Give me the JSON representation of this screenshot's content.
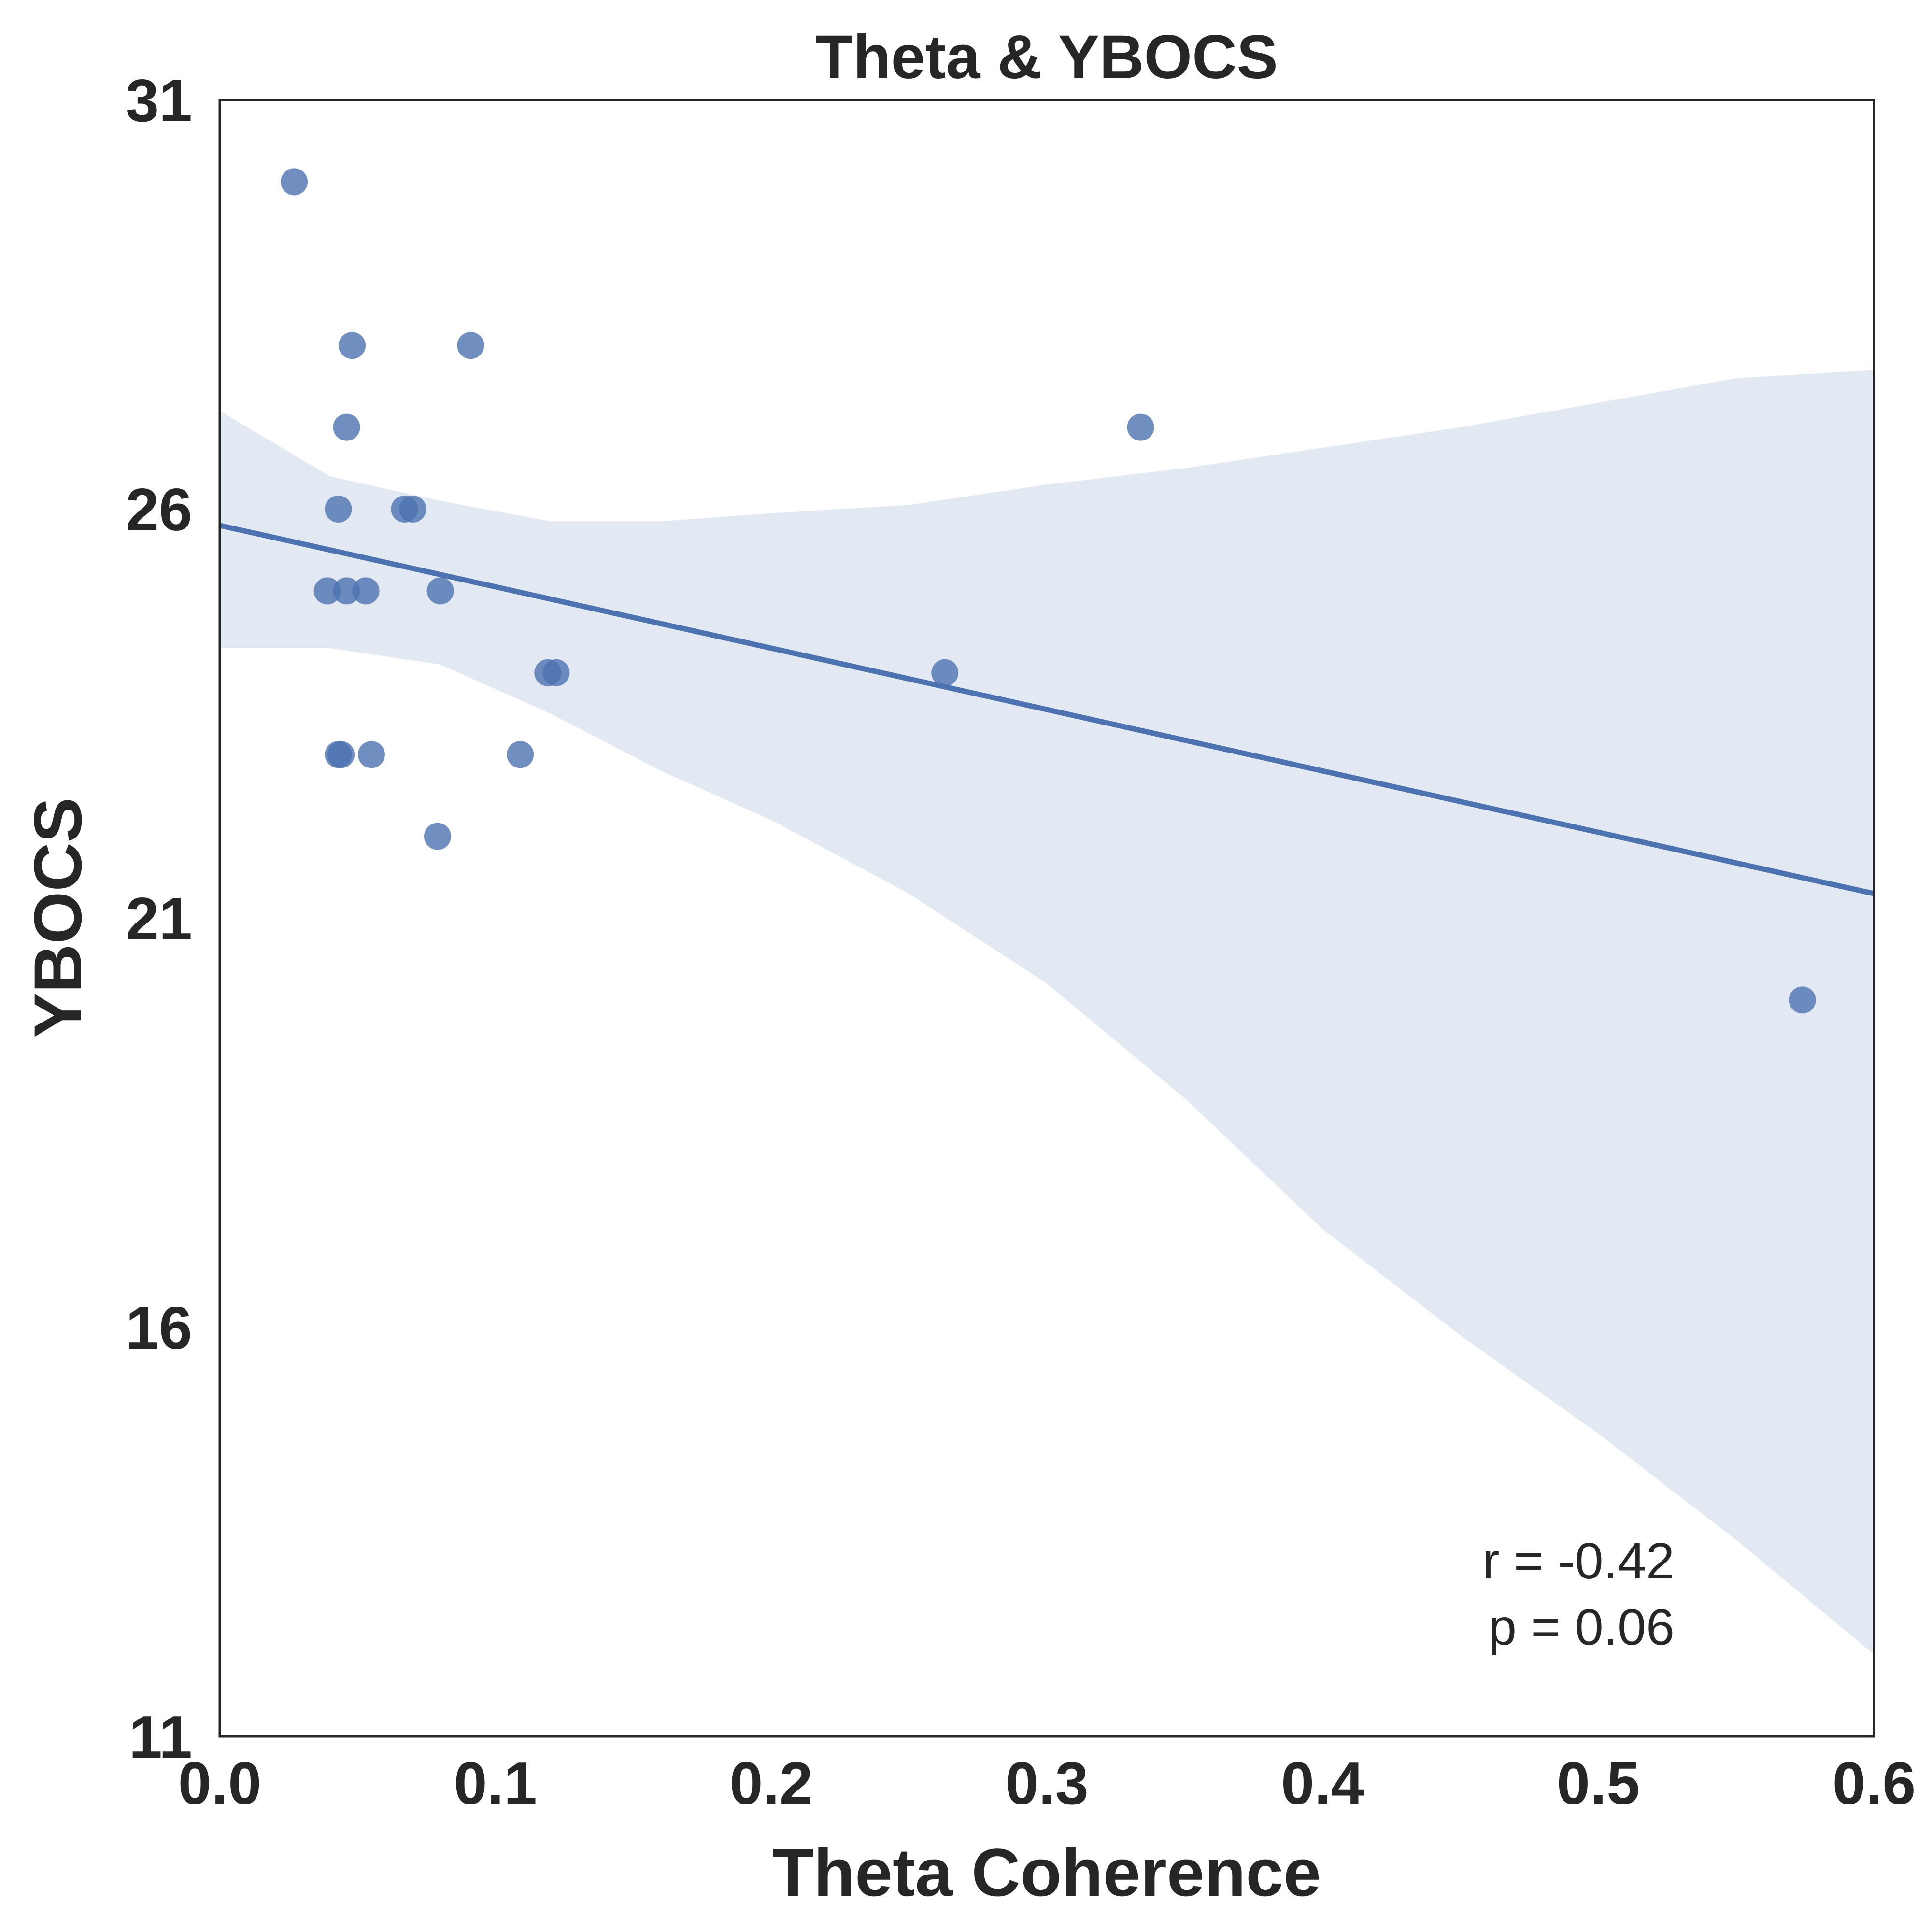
{
  "chart_data": {
    "type": "scatter",
    "title": "Theta & YBOCS",
    "xlabel": "Theta Coherence",
    "ylabel": "YBOCS",
    "xlim": [
      0.0,
      0.6
    ],
    "ylim": [
      11,
      31
    ],
    "x_ticks": [
      "0.0",
      "0.1",
      "0.2",
      "0.3",
      "0.4",
      "0.5",
      "0.6"
    ],
    "y_ticks": [
      "11",
      "16",
      "21",
      "26",
      "31"
    ],
    "grid": false,
    "colors": {
      "points": "#4c72b0",
      "line": "#4c72b0",
      "band": "#e3e9f3",
      "frame": "#262626"
    },
    "points": [
      {
        "x": 0.027,
        "y": 30
      },
      {
        "x": 0.048,
        "y": 28
      },
      {
        "x": 0.091,
        "y": 28
      },
      {
        "x": 0.046,
        "y": 27
      },
      {
        "x": 0.334,
        "y": 27
      },
      {
        "x": 0.043,
        "y": 26
      },
      {
        "x": 0.067,
        "y": 26
      },
      {
        "x": 0.07,
        "y": 26
      },
      {
        "x": 0.039,
        "y": 25
      },
      {
        "x": 0.046,
        "y": 25
      },
      {
        "x": 0.053,
        "y": 25
      },
      {
        "x": 0.08,
        "y": 25
      },
      {
        "x": 0.119,
        "y": 24
      },
      {
        "x": 0.122,
        "y": 24
      },
      {
        "x": 0.263,
        "y": 24
      },
      {
        "x": 0.043,
        "y": 23
      },
      {
        "x": 0.044,
        "y": 23
      },
      {
        "x": 0.055,
        "y": 23
      },
      {
        "x": 0.109,
        "y": 23
      },
      {
        "x": 0.079,
        "y": 22
      },
      {
        "x": 0.574,
        "y": 20
      }
    ],
    "regression": {
      "x": [
        0.0,
        0.6
      ],
      "y": [
        25.8,
        21.3
      ]
    },
    "confidence_band": {
      "x": [
        0.0,
        0.04,
        0.08,
        0.12,
        0.16,
        0.2,
        0.25,
        0.3,
        0.35,
        0.4,
        0.45,
        0.5,
        0.55,
        0.6
      ],
      "upper": [
        27.2,
        26.4,
        26.1,
        25.85,
        25.85,
        25.95,
        26.05,
        26.3,
        26.5,
        26.75,
        27.0,
        27.3,
        27.6,
        27.7
      ],
      "lower": [
        24.3,
        24.3,
        24.1,
        23.5,
        22.8,
        22.2,
        21.3,
        20.2,
        18.8,
        17.2,
        15.9,
        14.7,
        13.4,
        12.0
      ]
    },
    "annotation": {
      "r": "r = -0.42",
      "p": "p = 0.06",
      "position": "bottom-right"
    }
  }
}
